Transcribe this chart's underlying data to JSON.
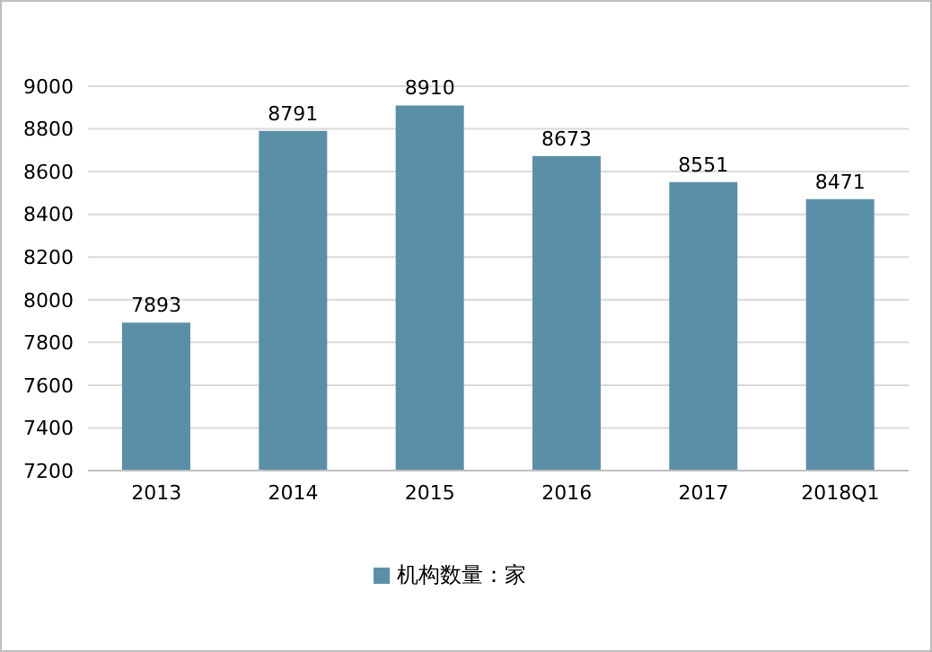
{
  "chart_data": {
    "type": "bar",
    "categories": [
      "2013",
      "2014",
      "2015",
      "2016",
      "2017",
      "2018Q1"
    ],
    "series": [
      {
        "name": "机构数量：家",
        "color": "#5b8fa8",
        "values": [
          7893,
          8791,
          8910,
          8673,
          8551,
          8471
        ]
      }
    ],
    "ylim": [
      7200,
      9000
    ],
    "yticks": [
      7200,
      7400,
      7600,
      7800,
      8000,
      8200,
      8400,
      8600,
      8800,
      9000
    ],
    "grid": "y",
    "legend": "bottom",
    "data_labels": true
  }
}
